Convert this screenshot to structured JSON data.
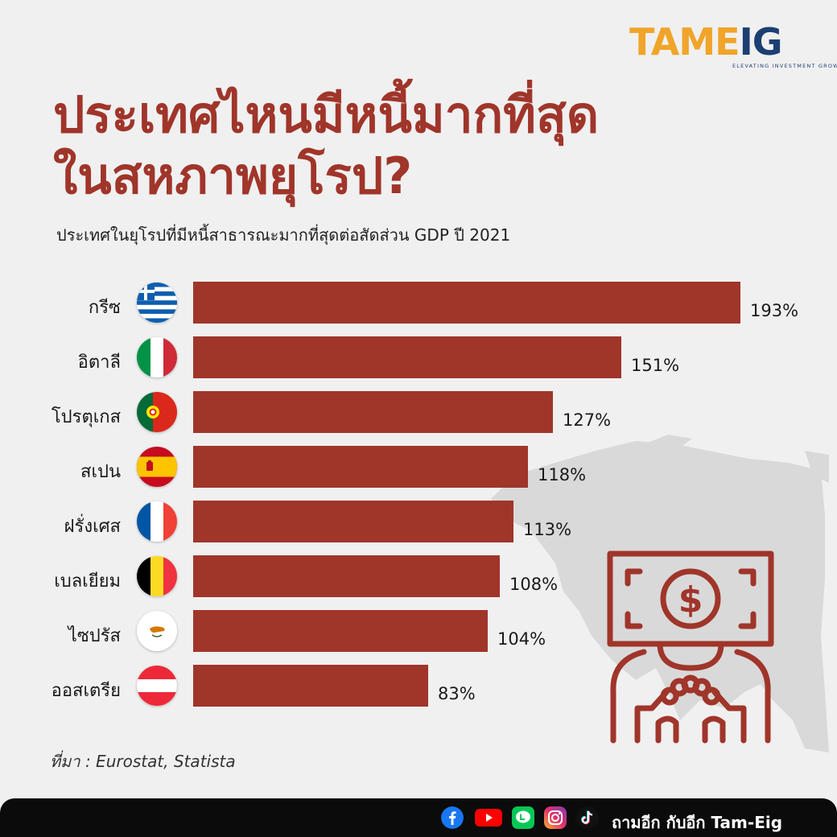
{
  "logo": {
    "brand_primary": "TAME",
    "brand_secondary": "IG",
    "tagline": "ELEVATING INVESTMENT GROWTH"
  },
  "chart_data": {
    "type": "bar",
    "orientation": "horizontal",
    "title": "ประเทศไหนมีหนี้มากที่สุด ในสหภาพยุโรป?",
    "title_lines": [
      "ประเทศไหนมีหนี้มากที่สุด",
      "ในสหภาพยุโรป?"
    ],
    "subtitle": "ประเทศในยุโรปที่มีหนี้สาธารณะมากที่สุดต่อสัดส่วน GDP ปี 2021",
    "categories": [
      "กรีซ",
      "อิตาลี",
      "โปรตุเกส",
      "สเปน",
      "ฝรั่งเศส",
      "เบลเยียม",
      "ไซปรัส",
      "ออสเตรีย"
    ],
    "values": [
      193,
      151,
      127,
      118,
      113,
      108,
      104,
      83
    ],
    "value_labels": [
      "193%",
      "151%",
      "127%",
      "118%",
      "113%",
      "108%",
      "104%",
      "83%"
    ],
    "flags": [
      "greece-flag-icon",
      "italy-flag-icon",
      "portugal-flag-icon",
      "spain-flag-icon",
      "france-flag-icon",
      "belgium-flag-icon",
      "cyprus-flag-icon",
      "austria-flag-icon"
    ],
    "xlim": [
      0,
      193
    ],
    "grid": false,
    "bar_color": "#a0352a"
  },
  "source": "ที่มา : Eurostat, Statista",
  "footer": {
    "icons": [
      "facebook-icon",
      "youtube-icon",
      "line-icon",
      "instagram-icon",
      "tiktok-icon"
    ],
    "channel": "ถามอีก กับอีก Tam-Eig"
  },
  "colors": {
    "accent": "#a0352a",
    "logo_orange": "#f0a429",
    "logo_navy": "#1c3f73",
    "background": "#f0f0f0",
    "map": "#d9d9d9"
  }
}
